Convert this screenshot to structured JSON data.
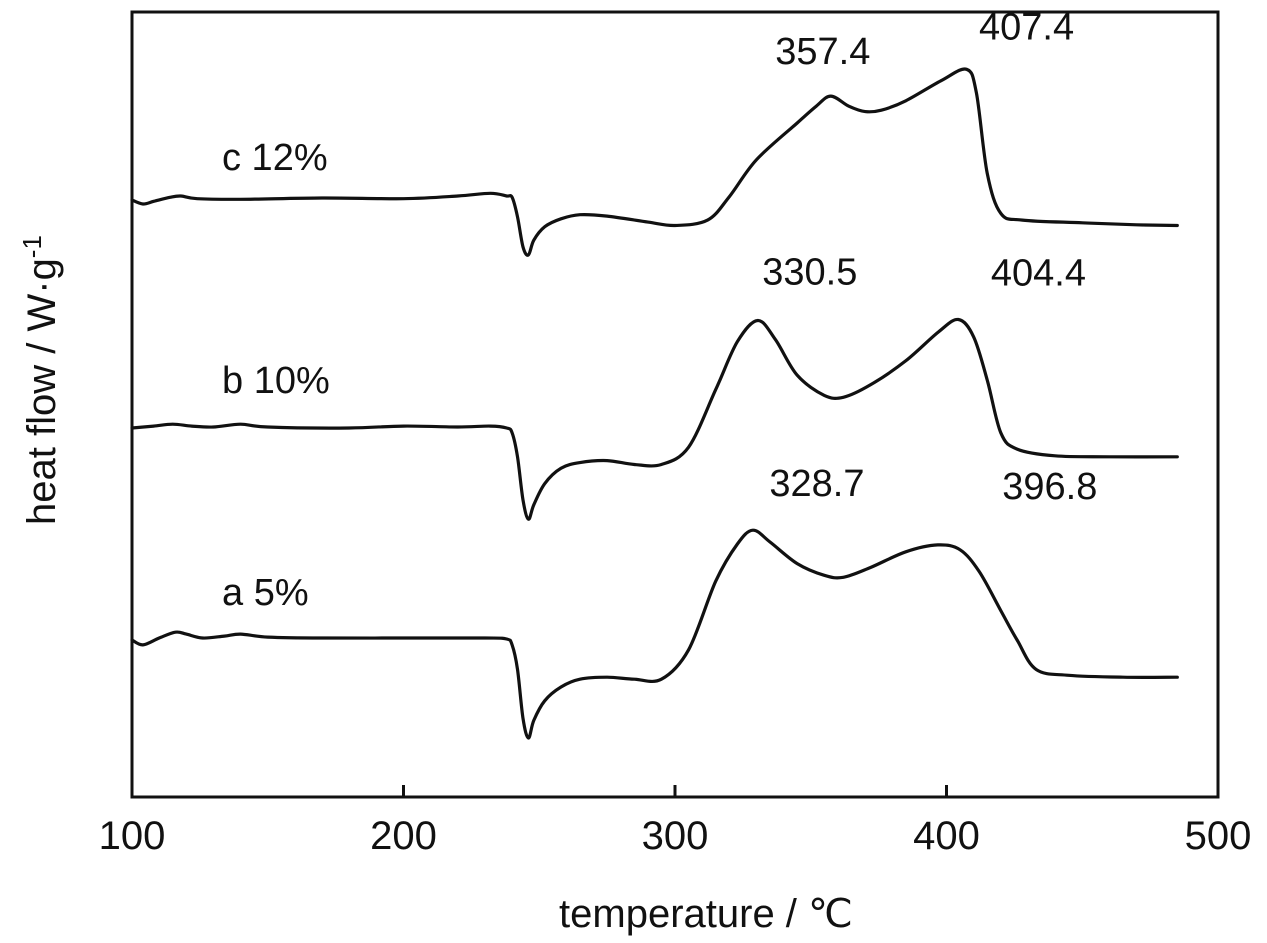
{
  "chart_data": {
    "type": "line",
    "xlabel": "temperature / ℃",
    "ylabel": "heat flow / W·g",
    "ylabel_superscript": "-1",
    "xlim": [
      100,
      500
    ],
    "x_ticks": [
      100,
      200,
      300,
      400,
      500
    ],
    "x_tick_labels": [
      "100",
      "200",
      "300",
      "400",
      "500"
    ],
    "y_ticks_labeled": false,
    "grid": false,
    "legend": "none",
    "series": [
      {
        "name": "c 12%",
        "peak_labels": [
          "357.4",
          "407.4"
        ],
        "peaks_x": [
          357.4,
          407.4
        ],
        "points": [
          [
            100,
            0.0
          ],
          [
            104,
            -0.06
          ],
          [
            108,
            -0.02
          ],
          [
            114,
            0.04
          ],
          [
            118,
            0.06
          ],
          [
            124,
            0.02
          ],
          [
            140,
            0.01
          ],
          [
            170,
            0.03
          ],
          [
            200,
            0.02
          ],
          [
            220,
            0.06
          ],
          [
            232,
            0.1
          ],
          [
            238,
            0.06
          ],
          [
            240,
            0.04
          ],
          [
            242,
            -0.25
          ],
          [
            244,
            -0.7
          ],
          [
            246,
            -0.82
          ],
          [
            248,
            -0.6
          ],
          [
            252,
            -0.4
          ],
          [
            258,
            -0.28
          ],
          [
            265,
            -0.22
          ],
          [
            275,
            -0.24
          ],
          [
            290,
            -0.33
          ],
          [
            300,
            -0.38
          ],
          [
            312,
            -0.3
          ],
          [
            320,
            0.05
          ],
          [
            330,
            0.6
          ],
          [
            345,
            1.15
          ],
          [
            352,
            1.4
          ],
          [
            357.4,
            1.55
          ],
          [
            364,
            1.4
          ],
          [
            370,
            1.32
          ],
          [
            376,
            1.34
          ],
          [
            385,
            1.48
          ],
          [
            398,
            1.78
          ],
          [
            407.4,
            1.95
          ],
          [
            411,
            1.6
          ],
          [
            415,
            0.4
          ],
          [
            420,
            -0.2
          ],
          [
            428,
            -0.3
          ],
          [
            450,
            -0.34
          ],
          [
            470,
            -0.37
          ],
          [
            485,
            -0.38
          ]
        ]
      },
      {
        "name": "b 10%",
        "peak_labels": [
          "330.5",
          "404.4"
        ],
        "peaks_x": [
          330.5,
          404.4
        ],
        "points": [
          [
            100,
            0.0
          ],
          [
            108,
            0.02
          ],
          [
            115,
            0.04
          ],
          [
            122,
            0.02
          ],
          [
            130,
            0.01
          ],
          [
            140,
            0.04
          ],
          [
            150,
            0.01
          ],
          [
            180,
            0.0
          ],
          [
            200,
            0.02
          ],
          [
            220,
            0.01
          ],
          [
            232,
            0.02
          ],
          [
            238,
            0.0
          ],
          [
            240,
            -0.05
          ],
          [
            242,
            -0.3
          ],
          [
            244,
            -0.75
          ],
          [
            246,
            -0.95
          ],
          [
            248,
            -0.8
          ],
          [
            252,
            -0.58
          ],
          [
            258,
            -0.42
          ],
          [
            265,
            -0.36
          ],
          [
            275,
            -0.34
          ],
          [
            285,
            -0.38
          ],
          [
            295,
            -0.38
          ],
          [
            305,
            -0.2
          ],
          [
            315,
            0.4
          ],
          [
            323,
            0.9
          ],
          [
            330.5,
            1.12
          ],
          [
            337,
            0.92
          ],
          [
            345,
            0.55
          ],
          [
            355,
            0.34
          ],
          [
            362,
            0.32
          ],
          [
            372,
            0.45
          ],
          [
            385,
            0.7
          ],
          [
            397,
            1.0
          ],
          [
            404.4,
            1.13
          ],
          [
            410,
            0.95
          ],
          [
            415,
            0.5
          ],
          [
            420,
            -0.05
          ],
          [
            426,
            -0.22
          ],
          [
            440,
            -0.29
          ],
          [
            460,
            -0.3
          ],
          [
            485,
            -0.3
          ]
        ]
      },
      {
        "name": "a 5%",
        "peak_labels": [
          "328.7",
          "396.8"
        ],
        "peaks_x": [
          328.7,
          396.8
        ],
        "points": [
          [
            100,
            0.0
          ],
          [
            104,
            -0.05
          ],
          [
            110,
            0.02
          ],
          [
            116,
            0.08
          ],
          [
            120,
            0.06
          ],
          [
            126,
            0.02
          ],
          [
            134,
            0.04
          ],
          [
            140,
            0.06
          ],
          [
            150,
            0.03
          ],
          [
            170,
            0.02
          ],
          [
            200,
            0.02
          ],
          [
            230,
            0.02
          ],
          [
            238,
            0.01
          ],
          [
            240,
            -0.05
          ],
          [
            242,
            -0.3
          ],
          [
            244,
            -0.8
          ],
          [
            246,
            -1.0
          ],
          [
            248,
            -0.82
          ],
          [
            252,
            -0.62
          ],
          [
            258,
            -0.48
          ],
          [
            265,
            -0.4
          ],
          [
            275,
            -0.38
          ],
          [
            285,
            -0.4
          ],
          [
            295,
            -0.4
          ],
          [
            305,
            -0.1
          ],
          [
            315,
            0.6
          ],
          [
            323,
            0.98
          ],
          [
            328.7,
            1.12
          ],
          [
            335,
            1.0
          ],
          [
            345,
            0.78
          ],
          [
            355,
            0.66
          ],
          [
            362,
            0.64
          ],
          [
            372,
            0.74
          ],
          [
            385,
            0.9
          ],
          [
            396.8,
            0.97
          ],
          [
            405,
            0.92
          ],
          [
            412,
            0.7
          ],
          [
            420,
            0.3
          ],
          [
            426,
            0.0
          ],
          [
            433,
            -0.3
          ],
          [
            445,
            -0.36
          ],
          [
            465,
            -0.38
          ],
          [
            485,
            -0.38
          ]
        ]
      }
    ]
  }
}
